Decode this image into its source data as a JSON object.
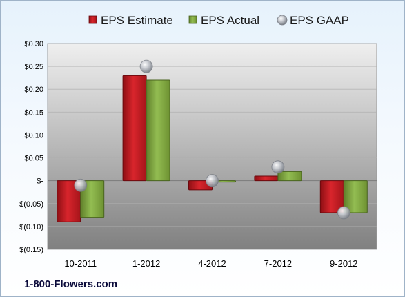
{
  "company": "1-800-Flowers.com",
  "chart_data": {
    "type": "bar",
    "categories": [
      "10-2011",
      "1-2012",
      "4-2012",
      "7-2012",
      "9-2012"
    ],
    "series": [
      {
        "name": "EPS Estimate",
        "kind": "bar",
        "color": "#c8202a",
        "values": [
          -0.09,
          0.23,
          -0.02,
          0.01,
          -0.07
        ]
      },
      {
        "name": "EPS Actual",
        "kind": "bar",
        "color": "#7fa840",
        "values": [
          -0.08,
          0.22,
          0.0,
          0.02,
          -0.07
        ]
      },
      {
        "name": "EPS GAAP",
        "kind": "marker",
        "color": "#b8bcc4",
        "values": [
          -0.01,
          0.25,
          0.0,
          0.03,
          -0.07
        ]
      }
    ],
    "yticks": [
      "$0.30",
      "$0.25",
      "$0.20",
      "$0.15",
      "$0.10",
      "$0.05",
      "$-",
      "$(0.05)",
      "$(0.10)",
      "$(0.15)"
    ],
    "ylim": [
      -0.15,
      0.3
    ],
    "legend_position": "top",
    "grid": true
  }
}
